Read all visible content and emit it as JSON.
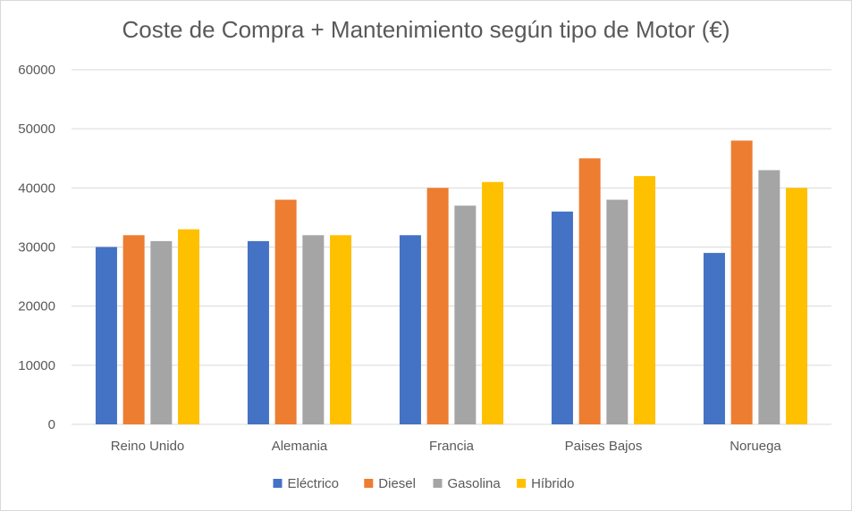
{
  "chart_data": {
    "type": "bar",
    "title": "Coste de Compra + Mantenimiento según tipo de Motor (€)",
    "categories": [
      "Reino Unido",
      "Alemania",
      "Francia",
      "Paises Bajos",
      "Noruega"
    ],
    "series": [
      {
        "name": "Eléctrico",
        "color": "#4472c4",
        "values": [
          30000,
          31000,
          32000,
          36000,
          29000
        ]
      },
      {
        "name": "Diesel",
        "color": "#ed7d31",
        "values": [
          32000,
          38000,
          40000,
          45000,
          48000
        ]
      },
      {
        "name": "Gasolina",
        "color": "#a5a5a5",
        "values": [
          31000,
          32000,
          37000,
          38000,
          43000
        ]
      },
      {
        "name": "Híbrido",
        "color": "#ffc000",
        "values": [
          33000,
          32000,
          41000,
          42000,
          40000
        ]
      }
    ],
    "ylim": [
      0,
      60000
    ],
    "yticks": [
      0,
      10000,
      20000,
      30000,
      40000,
      50000,
      60000
    ],
    "grid": true,
    "legend": "bottom"
  }
}
